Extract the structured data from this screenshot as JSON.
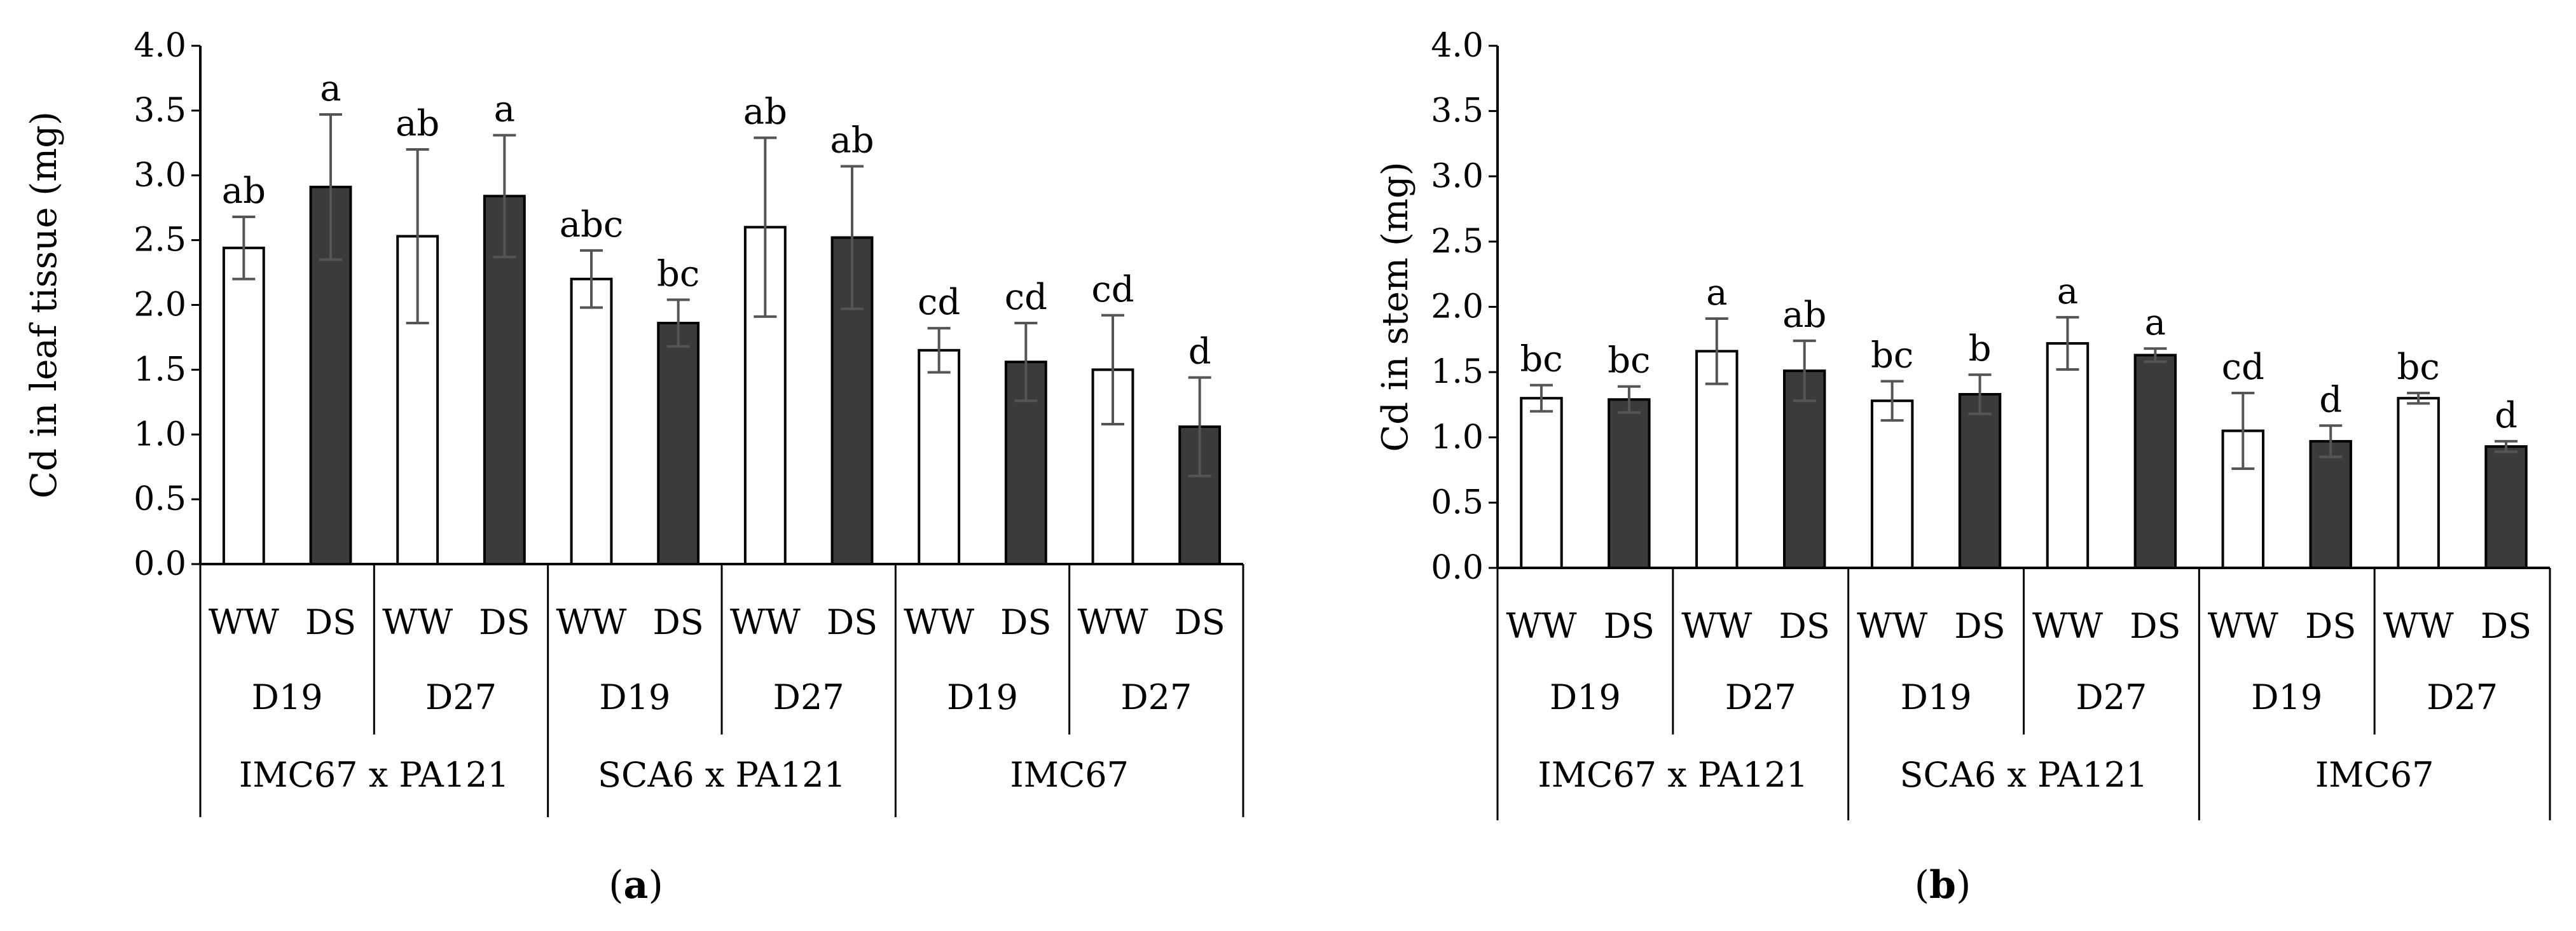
{
  "colors": {
    "ww_fill": "#ffffff",
    "ds_fill": "#3b3b3b",
    "bar_stroke": "#000000",
    "error_bar": "#555555",
    "axis": "#000000"
  },
  "chart_data": [
    {
      "type": "bar",
      "panel_label": "a",
      "ylabel": "Cd in leaf tissue (mg)",
      "ylim": [
        0,
        4.0
      ],
      "yticks": [
        "0.0",
        "0.5",
        "1.0",
        "1.5",
        "2.0",
        "2.5",
        "3.0",
        "3.5",
        "4.0"
      ],
      "treatments": [
        "WW",
        "DS",
        "WW",
        "DS",
        "WW",
        "DS",
        "WW",
        "DS",
        "WW",
        "DS",
        "WW",
        "DS"
      ],
      "days": [
        "D19",
        "D27",
        "D19",
        "D27",
        "D19",
        "D27"
      ],
      "genotypes": [
        "IMC67 x PA121",
        "SCA6 x PA121",
        "IMC67"
      ],
      "series": [
        {
          "name": "WW",
          "values": [
            2.44,
            2.53,
            2.2,
            2.6,
            1.65,
            1.5
          ],
          "errors": [
            0.24,
            0.67,
            0.22,
            0.69,
            0.17,
            0.42
          ],
          "letters": [
            "ab",
            "ab",
            "abc",
            "ab",
            "cd",
            "cd"
          ]
        },
        {
          "name": "DS",
          "values": [
            2.91,
            2.84,
            1.86,
            2.52,
            1.56,
            1.06
          ],
          "errors": [
            0.56,
            0.47,
            0.18,
            0.55,
            0.3,
            0.38
          ],
          "letters": [
            "a",
            "a",
            "bc",
            "ab",
            "cd",
            "d"
          ]
        }
      ]
    },
    {
      "type": "bar",
      "panel_label": "b",
      "ylabel": "Cd in stem (mg)",
      "ylim": [
        0,
        4.0
      ],
      "yticks": [
        "0.0",
        "0.5",
        "1.0",
        "1.5",
        "2.0",
        "2.5",
        "3.0",
        "3.5",
        "4.0"
      ],
      "treatments": [
        "WW",
        "DS",
        "WW",
        "DS",
        "WW",
        "DS",
        "WW",
        "DS",
        "WW",
        "DS",
        "WW",
        "DS"
      ],
      "days": [
        "D19",
        "D27",
        "D19",
        "D27",
        "D19",
        "D27"
      ],
      "genotypes": [
        "IMC67 x PA121",
        "SCA6 x PA121",
        "IMC67"
      ],
      "series": [
        {
          "name": "WW",
          "values": [
            1.3,
            1.66,
            1.28,
            1.72,
            1.05,
            1.3
          ],
          "errors": [
            0.1,
            0.25,
            0.15,
            0.2,
            0.29,
            0.04
          ],
          "letters": [
            "bc",
            "a",
            "bc",
            "a",
            "cd",
            "bc"
          ]
        },
        {
          "name": "DS",
          "values": [
            1.29,
            1.51,
            1.33,
            1.63,
            0.97,
            0.93
          ],
          "errors": [
            0.1,
            0.23,
            0.15,
            0.05,
            0.12,
            0.04
          ],
          "letters": [
            "bc",
            "ab",
            "b",
            "a",
            "d",
            "d"
          ]
        }
      ]
    }
  ]
}
